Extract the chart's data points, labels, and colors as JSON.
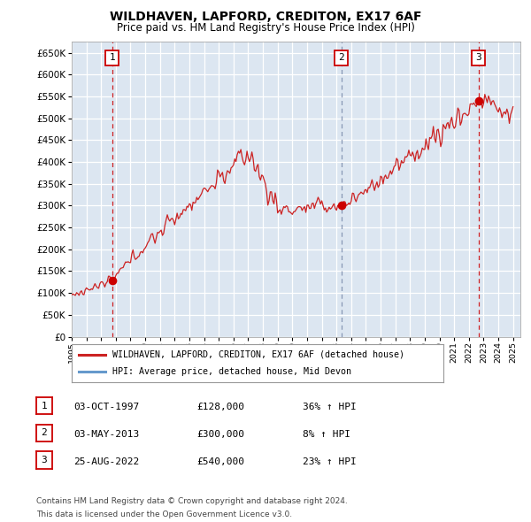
{
  "title": "WILDHAVEN, LAPFORD, CREDITON, EX17 6AF",
  "subtitle": "Price paid vs. HM Land Registry's House Price Index (HPI)",
  "yticks": [
    0,
    50000,
    100000,
    150000,
    200000,
    250000,
    300000,
    350000,
    400000,
    450000,
    500000,
    550000,
    600000,
    650000
  ],
  "xlim_start": 1995.0,
  "xlim_end": 2025.5,
  "ylim": [
    0,
    675000
  ],
  "bg_color": "#dce6f1",
  "grid_color": "#ffffff",
  "sale_points": [
    {
      "year": 1997.75,
      "price": 128000,
      "label": "1",
      "date": "03-OCT-1997",
      "pct": "36%",
      "vline_color": "#cc0000",
      "vline_style": "red"
    },
    {
      "year": 2013.33,
      "price": 300000,
      "label": "2",
      "date": "03-MAY-2013",
      "pct": "8%",
      "vline_color": "#7788aa",
      "vline_style": "blue"
    },
    {
      "year": 2022.65,
      "price": 540000,
      "label": "3",
      "date": "25-AUG-2022",
      "pct": "23%",
      "vline_color": "#cc0000",
      "vline_style": "red"
    }
  ],
  "legend_line1": "WILDHAVEN, LAPFORD, CREDITON, EX17 6AF (detached house)",
  "legend_line2": "HPI: Average price, detached house, Mid Devon",
  "footnote1": "Contains HM Land Registry data © Crown copyright and database right 2024.",
  "footnote2": "This data is licensed under the Open Government Licence v3.0.",
  "red_line_color": "#cc2222",
  "blue_line_color": "#6699cc",
  "dot_color": "#cc0000"
}
